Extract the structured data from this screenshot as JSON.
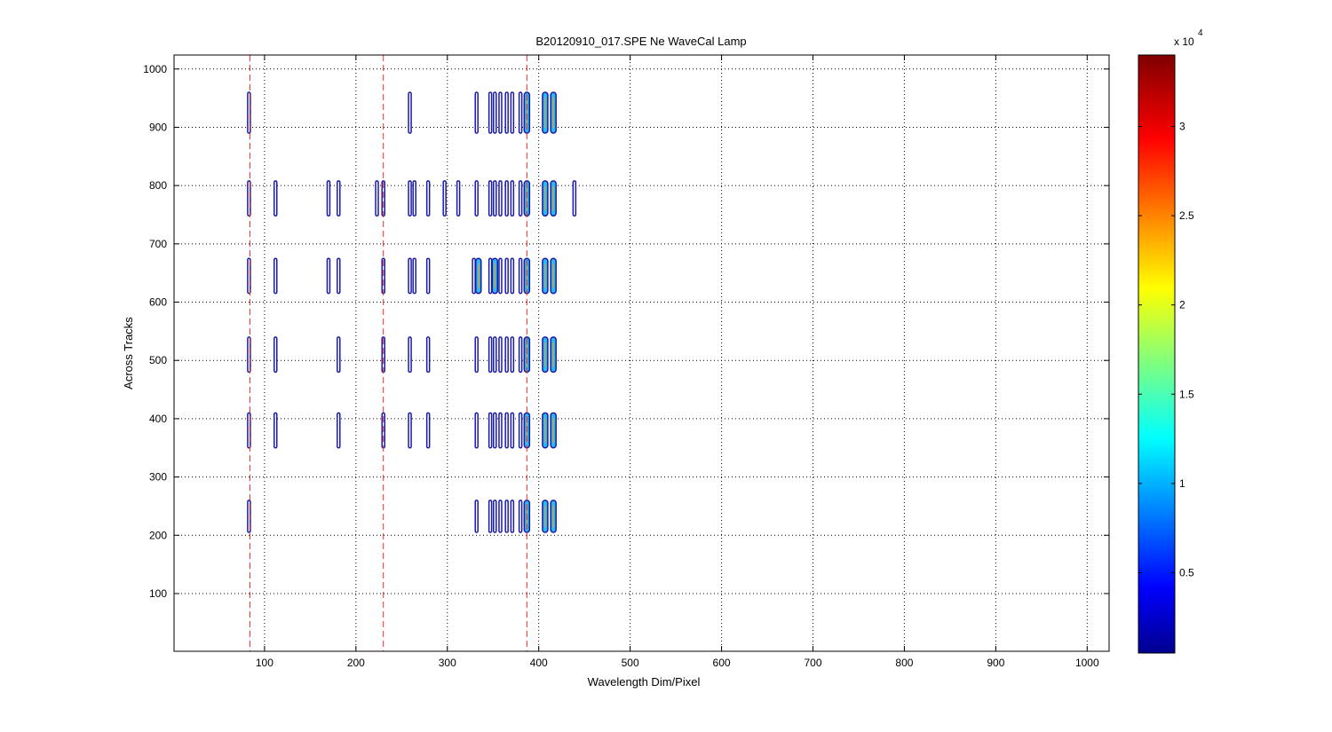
{
  "chart_data": {
    "type": "contour",
    "title": "B20120910_017.SPE  Ne WaveCal Lamp",
    "xlabel": "Wavelength Dim/Pixel",
    "ylabel": "Across Tracks",
    "xlim": [
      1,
      1024
    ],
    "ylim": [
      1,
      1024
    ],
    "xticks": [
      100,
      200,
      300,
      400,
      500,
      600,
      700,
      800,
      900,
      1000
    ],
    "yticks": [
      100,
      200,
      300,
      400,
      500,
      600,
      700,
      800,
      900,
      1000
    ],
    "grid": true,
    "reference_lines_x": [
      84,
      230,
      387
    ],
    "reference_line_color": "#e8302a",
    "tracks": [
      {
        "y_range": [
          205,
          260
        ],
        "lines_x": [
          83,
          332,
          347,
          352,
          358,
          365,
          371,
          380,
          387,
          407,
          416
        ],
        "peak_x": [
          387,
          407,
          416
        ]
      },
      {
        "y_range": [
          350,
          410
        ],
        "lines_x": [
          83,
          112,
          181,
          230,
          259,
          279,
          332,
          347,
          352,
          358,
          365,
          371,
          380,
          387,
          407,
          416
        ],
        "peak_x": [
          387,
          407,
          416
        ]
      },
      {
        "y_range": [
          480,
          540
        ],
        "lines_x": [
          83,
          112,
          181,
          230,
          259,
          279,
          332,
          347,
          352,
          358,
          365,
          371,
          380,
          387,
          407,
          416
        ],
        "peak_x": [
          387,
          407,
          416
        ]
      },
      {
        "y_range": [
          615,
          675
        ],
        "lines_x": [
          83,
          112,
          170,
          181,
          230,
          259,
          264,
          279,
          329,
          334,
          347,
          352,
          358,
          365,
          371,
          380,
          387,
          407,
          416
        ],
        "peak_x": [
          334,
          352,
          387,
          407,
          416
        ]
      },
      {
        "y_range": [
          748,
          808
        ],
        "lines_x": [
          83,
          112,
          170,
          181,
          223,
          230,
          259,
          264,
          279,
          297,
          312,
          332,
          347,
          352,
          358,
          365,
          371,
          380,
          387,
          407,
          416,
          439
        ],
        "peak_x": [
          387,
          407,
          416
        ]
      },
      {
        "y_range": [
          890,
          960
        ],
        "lines_x": [
          83,
          259,
          332,
          347,
          352,
          358,
          365,
          371,
          380,
          387,
          407,
          416
        ],
        "peak_x": [
          387,
          407,
          416
        ]
      }
    ],
    "colorbar": {
      "multiplier": "x 10",
      "exponent": "4",
      "range": [
        0.05,
        3.4
      ],
      "ticks": [
        "0.5",
        "1",
        "1.5",
        "2",
        "2.5",
        "3"
      ],
      "tick_values": [
        0.5,
        1,
        1.5,
        2,
        2.5,
        3
      ],
      "colormap": "jet"
    }
  }
}
